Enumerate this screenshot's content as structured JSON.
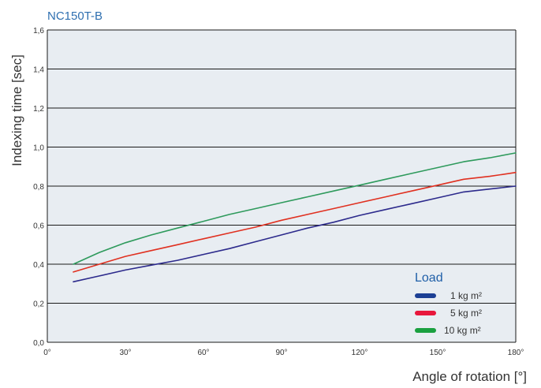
{
  "chart_data": {
    "type": "line",
    "title": "NC150T-B",
    "xlabel": "Angle of rotation [°]",
    "ylabel": "Indexing time [sec]",
    "xlim": [
      0,
      180
    ],
    "ylim": [
      0,
      1.6
    ],
    "x_ticks": [
      {
        "value": 0,
        "label": "0°"
      },
      {
        "value": 30,
        "label": "30°"
      },
      {
        "value": 60,
        "label": "60°"
      },
      {
        "value": 90,
        "label": "90°"
      },
      {
        "value": 120,
        "label": "120°"
      },
      {
        "value": 150,
        "label": "150°"
      },
      {
        "value": 180,
        "label": "180°"
      }
    ],
    "y_ticks": [
      {
        "value": 0,
        "label": "0,0"
      },
      {
        "value": 0.2,
        "label": "0,2"
      },
      {
        "value": 0.4,
        "label": "0,4"
      },
      {
        "value": 0.6,
        "label": "0,6"
      },
      {
        "value": 0.8,
        "label": "0,8"
      },
      {
        "value": 1.0,
        "label": "1,0"
      },
      {
        "value": 1.2,
        "label": "1,2"
      },
      {
        "value": 1.4,
        "label": "1,4"
      },
      {
        "value": 1.6,
        "label": "1,6"
      }
    ],
    "grid": "horizontal",
    "legend": {
      "title": "Load",
      "position": "bottom-right"
    },
    "series": [
      {
        "name": "1 kg m²",
        "color": "#2c2a8c",
        "legend_color": "#1c3f94",
        "x": [
          10,
          20,
          30,
          40,
          50,
          60,
          70,
          80,
          90,
          100,
          110,
          120,
          130,
          140,
          150,
          160,
          170,
          180
        ],
        "y": [
          0.31,
          0.34,
          0.37,
          0.395,
          0.42,
          0.45,
          0.48,
          0.515,
          0.55,
          0.585,
          0.615,
          0.65,
          0.68,
          0.71,
          0.74,
          0.77,
          0.785,
          0.8
        ]
      },
      {
        "name": "5 kg m²",
        "color": "#e03020",
        "legend_color": "#e8173c",
        "x": [
          10,
          20,
          30,
          40,
          50,
          60,
          70,
          80,
          90,
          100,
          110,
          120,
          130,
          140,
          150,
          160,
          170,
          180
        ],
        "y": [
          0.36,
          0.4,
          0.44,
          0.47,
          0.5,
          0.53,
          0.56,
          0.59,
          0.625,
          0.655,
          0.685,
          0.715,
          0.745,
          0.775,
          0.805,
          0.835,
          0.85,
          0.87
        ]
      },
      {
        "name": "10 kg m²",
        "color": "#2e9a5c",
        "legend_color": "#1aa040",
        "x": [
          10,
          20,
          30,
          40,
          50,
          60,
          70,
          80,
          90,
          100,
          110,
          120,
          130,
          140,
          150,
          160,
          170,
          180
        ],
        "y": [
          0.4,
          0.46,
          0.51,
          0.55,
          0.585,
          0.62,
          0.655,
          0.685,
          0.715,
          0.745,
          0.775,
          0.805,
          0.835,
          0.865,
          0.895,
          0.925,
          0.945,
          0.97
        ]
      }
    ]
  },
  "colors": {
    "title": "#2e6fb0",
    "plot_background": "#e8edf2",
    "gridline": "#1a1a1a",
    "legend_title": "#1f5fa8"
  }
}
